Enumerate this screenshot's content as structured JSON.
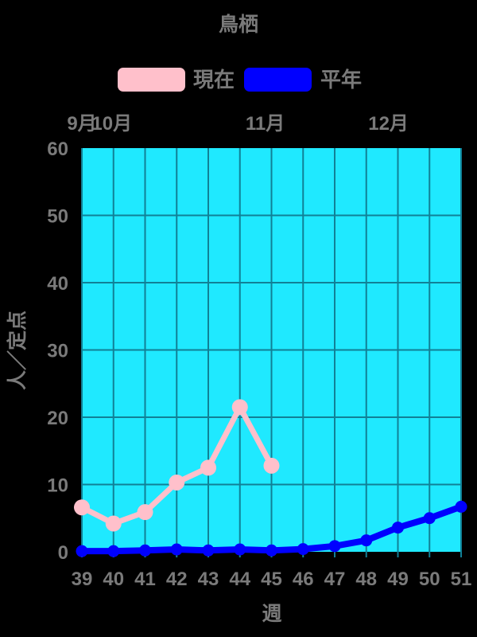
{
  "title": "鳥栖",
  "legend": [
    {
      "label": "現在",
      "color": "#FFC0CB"
    },
    {
      "label": "平年",
      "color": "#0000FF"
    }
  ],
  "y_axis": {
    "label": "人／定点",
    "ticks": [
      0,
      10,
      20,
      30,
      40,
      50,
      60
    ]
  },
  "x_axis": {
    "label": "週",
    "ticks": [
      39,
      40,
      41,
      42,
      43,
      44,
      45,
      46,
      47,
      48,
      49,
      50,
      51
    ]
  },
  "months": [
    {
      "label": "9月",
      "week": 39.0
    },
    {
      "label": "10月",
      "week": 39.95
    },
    {
      "label": "11月",
      "week": 44.8
    },
    {
      "label": "12月",
      "week": 48.7
    }
  ],
  "colors": {
    "background": "#000000",
    "plot_background": "#1FE9FF",
    "grid": "#118096",
    "text": "#7A7A7A"
  },
  "chart_data": {
    "type": "line",
    "title": "鳥栖",
    "xlabel": "週",
    "ylabel": "人／定点",
    "x": [
      39,
      40,
      41,
      42,
      43,
      44,
      45,
      46,
      47,
      48,
      49,
      50,
      51
    ],
    "ylim": [
      0,
      60
    ],
    "yticks": [
      0,
      10,
      20,
      30,
      40,
      50,
      60
    ],
    "grid": true,
    "legend_position": "top",
    "series": [
      {
        "name": "現在",
        "color": "#FFC0CB",
        "values": [
          6.6,
          4.2,
          5.9,
          10.3,
          12.5,
          21.5,
          12.8,
          null,
          null,
          null,
          null,
          null,
          null
        ]
      },
      {
        "name": "平年",
        "color": "#0000FF",
        "values": [
          0.1,
          0.1,
          0.2,
          0.35,
          0.2,
          0.35,
          0.2,
          0.4,
          0.85,
          1.7,
          3.6,
          5.0,
          6.7
        ]
      }
    ]
  }
}
